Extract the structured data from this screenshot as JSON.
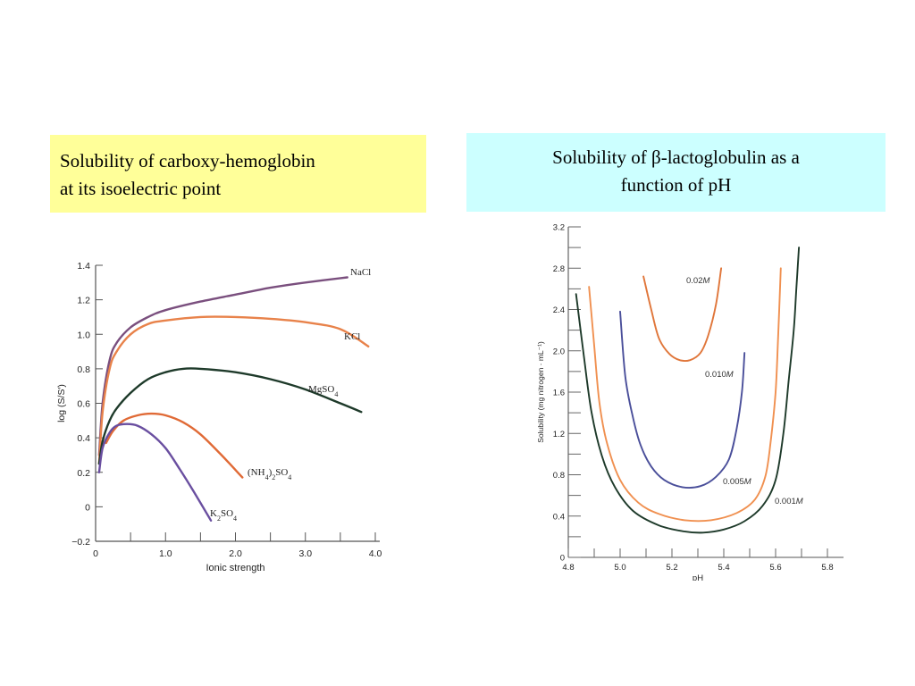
{
  "slide": {
    "left_caption": {
      "line1": "Solubility of carboxy-hemoglobin",
      "line2": "at its isoelectric point"
    },
    "right_caption": {
      "line1_pre": "Solubility of ",
      "line1_beta": "β",
      "line1_post": "-lactoglobulin as a",
      "line2": "function of pH"
    }
  },
  "chart_data": [
    {
      "type": "line",
      "title": "",
      "xlabel": "Ionic strength",
      "ylabel": "log (S/S′)",
      "xlim": [
        0,
        4.0
      ],
      "ylim": [
        -0.2,
        1.4
      ],
      "xticks": [
        "0",
        "1.0",
        "2.0",
        "3.0",
        "4.0"
      ],
      "yticks": [
        "−0.2",
        "0",
        "0.2",
        "0.4",
        "0.6",
        "0.8",
        "1.0",
        "1.2",
        "1.4"
      ],
      "colors": {
        "NaCl": "#7a4f7e",
        "KCl": "#e8824a",
        "MgSO4": "#1e3a2a",
        "(NH4)2SO4": "#e06a36",
        "K2SO4": "#6a4fa0"
      },
      "series": [
        {
          "name": "NaCl",
          "x": [
            0.05,
            0.1,
            0.2,
            0.3,
            0.5,
            0.75,
            1.0,
            1.5,
            2.0,
            2.5,
            3.0,
            3.6
          ],
          "y": [
            0.3,
            0.6,
            0.85,
            0.95,
            1.04,
            1.1,
            1.14,
            1.19,
            1.23,
            1.27,
            1.3,
            1.33
          ]
        },
        {
          "name": "KCl",
          "x": [
            0.05,
            0.1,
            0.2,
            0.3,
            0.5,
            0.75,
            1.0,
            1.5,
            2.0,
            2.5,
            3.0,
            3.5,
            3.9
          ],
          "y": [
            0.25,
            0.55,
            0.8,
            0.9,
            1.0,
            1.06,
            1.08,
            1.1,
            1.1,
            1.09,
            1.07,
            1.03,
            0.93
          ]
        },
        {
          "name": "MgSO4",
          "x": [
            0.05,
            0.1,
            0.2,
            0.3,
            0.5,
            0.75,
            1.0,
            1.25,
            1.5,
            2.0,
            2.5,
            3.0,
            3.5,
            3.8
          ],
          "y": [
            0.25,
            0.38,
            0.5,
            0.57,
            0.66,
            0.74,
            0.78,
            0.8,
            0.8,
            0.78,
            0.74,
            0.68,
            0.6,
            0.55
          ]
        },
        {
          "name": "(NH4)2SO4",
          "x": [
            0.15,
            0.25,
            0.4,
            0.6,
            0.8,
            1.0,
            1.25,
            1.5,
            1.8,
            2.1
          ],
          "y": [
            0.37,
            0.44,
            0.5,
            0.53,
            0.54,
            0.53,
            0.49,
            0.42,
            0.3,
            0.17
          ]
        },
        {
          "name": "K2SO4",
          "x": [
            0.05,
            0.1,
            0.2,
            0.3,
            0.45,
            0.6,
            0.8,
            1.0,
            1.2,
            1.4,
            1.65
          ],
          "y": [
            0.2,
            0.34,
            0.43,
            0.47,
            0.48,
            0.47,
            0.42,
            0.34,
            0.22,
            0.09,
            -0.08
          ]
        }
      ],
      "labels": [
        "NaCl",
        "KCl",
        "MgSO₄",
        "(NH₄)₂SO₄",
        "K₂SO₄"
      ]
    },
    {
      "type": "line",
      "title": "",
      "xlabel": "pH",
      "ylabel": "Solubility (mg nitrogen · mL⁻¹)",
      "xlim": [
        4.8,
        5.8
      ],
      "ylim": [
        0,
        3.2
      ],
      "xticks": [
        "4.8",
        "5.0",
        "5.2",
        "5.4",
        "5.6",
        "5.8"
      ],
      "yticks": [
        "0",
        "0.4",
        "0.8",
        "1.2",
        "1.6",
        "2.0",
        "2.4",
        "2.8",
        "3.2"
      ],
      "colors": {
        "0.02M": "#e0763a",
        "0.010M": "#4a4f9a",
        "0.005M": "#f09050",
        "0.001M": "#1e3a2a"
      },
      "series": [
        {
          "name": "0.02M",
          "x": [
            5.09,
            5.12,
            5.15,
            5.19,
            5.23,
            5.27,
            5.31,
            5.34,
            5.37,
            5.39
          ],
          "y": [
            2.72,
            2.4,
            2.12,
            1.97,
            1.91,
            1.91,
            1.98,
            2.15,
            2.45,
            2.8
          ]
        },
        {
          "name": "0.010M",
          "x": [
            5.0,
            5.02,
            5.05,
            5.08,
            5.12,
            5.17,
            5.24,
            5.31,
            5.37,
            5.42,
            5.45,
            5.47,
            5.48
          ],
          "y": [
            2.38,
            1.75,
            1.35,
            1.08,
            0.88,
            0.75,
            0.68,
            0.69,
            0.78,
            0.95,
            1.25,
            1.6,
            1.98
          ]
        },
        {
          "name": "0.005M",
          "x": [
            4.88,
            4.9,
            4.92,
            4.95,
            5.0,
            5.07,
            5.15,
            5.25,
            5.35,
            5.45,
            5.52,
            5.56,
            5.58,
            5.6,
            5.61,
            5.62
          ],
          "y": [
            2.62,
            2.05,
            1.5,
            1.1,
            0.75,
            0.53,
            0.42,
            0.36,
            0.36,
            0.43,
            0.56,
            0.78,
            1.1,
            1.6,
            2.15,
            2.8
          ]
        },
        {
          "name": "0.001M",
          "x": [
            4.83,
            4.86,
            4.89,
            4.93,
            4.98,
            5.05,
            5.15,
            5.25,
            5.32,
            5.4,
            5.48,
            5.55,
            5.6,
            5.63,
            5.65,
            5.67,
            5.68,
            5.69
          ],
          "y": [
            2.55,
            1.95,
            1.4,
            0.98,
            0.68,
            0.45,
            0.31,
            0.25,
            0.24,
            0.27,
            0.35,
            0.5,
            0.75,
            1.2,
            1.7,
            2.2,
            2.6,
            3.0
          ]
        }
      ],
      "labels": [
        "0.02M",
        "0.010M",
        "0.005M",
        "0.001M"
      ]
    }
  ]
}
